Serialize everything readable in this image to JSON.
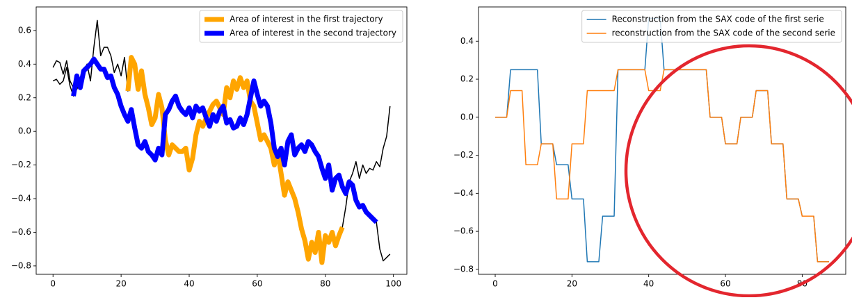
{
  "chart_data": [
    {
      "type": "line",
      "x": [
        0,
        1,
        2,
        3,
        4,
        5,
        6,
        7,
        8,
        9,
        10,
        11,
        12,
        13,
        14,
        15,
        16,
        17,
        18,
        19,
        20,
        21,
        22,
        23,
        24,
        25,
        26,
        27,
        28,
        29,
        30,
        31,
        32,
        33,
        34,
        35,
        36,
        37,
        38,
        39,
        40,
        41,
        42,
        43,
        44,
        45,
        46,
        47,
        48,
        49,
        50,
        51,
        52,
        53,
        54,
        55,
        56,
        57,
        58,
        59,
        60,
        61,
        62,
        63,
        64,
        65,
        66,
        67,
        68,
        69,
        70,
        71,
        72,
        73,
        74,
        75,
        76,
        77,
        78,
        79,
        80,
        81,
        82,
        83,
        84,
        85,
        86,
        87,
        88,
        89,
        90,
        91,
        92,
        93,
        94,
        95,
        96,
        97,
        98,
        99
      ],
      "series": [
        {
          "color": "#000000",
          "linewidth": 1.5,
          "values": [
            0.38,
            0.42,
            0.41,
            0.34,
            0.42,
            0.3,
            0.26,
            0.25,
            0.3,
            0.35,
            0.4,
            0.3,
            0.5,
            0.66,
            0.45,
            0.5,
            0.5,
            0.45,
            0.35,
            0.4,
            0.33,
            0.44,
            0.24,
            0.44,
            0.4,
            0.25,
            0.36,
            0.22,
            0.14,
            0.04,
            0.08,
            0.22,
            0.14,
            -0.05,
            -0.14,
            -0.08,
            -0.1,
            -0.12,
            -0.12,
            -0.1,
            -0.23,
            -0.16,
            -0.02,
            0.06,
            0.03,
            0.08,
            0.12,
            0.16,
            0.18,
            0.14,
            0.1,
            0.26,
            0.2,
            0.3,
            0.25,
            0.32,
            0.26,
            0.3,
            0.18,
            0.15,
            0.05,
            -0.05,
            -0.02,
            -0.06,
            -0.1,
            -0.2,
            -0.12,
            -0.25,
            -0.38,
            -0.3,
            -0.35,
            -0.4,
            -0.48,
            -0.58,
            -0.65,
            -0.76,
            -0.66,
            -0.72,
            -0.6,
            -0.78,
            -0.62,
            -0.66,
            -0.6,
            -0.68,
            -0.62,
            -0.57,
            -0.45,
            -0.3,
            -0.25,
            -0.18,
            -0.28,
            -0.2,
            -0.25,
            -0.22,
            -0.23,
            -0.18,
            -0.21,
            -0.1,
            -0.03,
            0.15
          ]
        },
        {
          "color": "#000000",
          "linewidth": 1.5,
          "values": [
            0.3,
            0.31,
            0.28,
            0.3,
            0.38,
            0.27,
            0.21,
            0.33,
            0.26,
            0.36,
            0.38,
            0.4,
            0.43,
            0.4,
            0.37,
            0.37,
            0.32,
            0.33,
            0.26,
            0.22,
            0.15,
            0.1,
            0.06,
            0.13,
            0.02,
            -0.08,
            -0.1,
            -0.06,
            -0.12,
            -0.14,
            -0.17,
            -0.1,
            -0.14,
            0.1,
            0.13,
            0.18,
            0.21,
            0.15,
            0.12,
            0.1,
            0.14,
            0.08,
            0.15,
            0.12,
            0.14,
            0.08,
            0.03,
            0.1,
            0.06,
            0.12,
            0.15,
            0.05,
            0.07,
            0.02,
            0.03,
            0.08,
            0.04,
            0.1,
            0.2,
            0.3,
            0.22,
            0.15,
            0.18,
            0.15,
            0.05,
            -0.1,
            -0.15,
            -0.1,
            -0.2,
            -0.06,
            -0.02,
            -0.14,
            -0.1,
            -0.08,
            -0.12,
            -0.06,
            -0.08,
            -0.12,
            -0.15,
            -0.22,
            -0.28,
            -0.2,
            -0.35,
            -0.28,
            -0.26,
            -0.33,
            -0.37,
            -0.3,
            -0.32,
            -0.41,
            -0.45,
            -0.44,
            -0.48,
            -0.5,
            -0.52,
            -0.54,
            -0.7,
            -0.77,
            -0.75,
            -0.73
          ]
        },
        {
          "name": "Area of interest in the first trajectory",
          "color": "#ffa500",
          "linewidth": 7,
          "values": [
            null,
            null,
            null,
            null,
            null,
            null,
            null,
            null,
            null,
            null,
            null,
            null,
            null,
            null,
            null,
            null,
            null,
            null,
            null,
            null,
            null,
            null,
            0.24,
            0.44,
            0.4,
            0.25,
            0.36,
            0.22,
            0.14,
            0.04,
            0.08,
            0.22,
            0.14,
            -0.05,
            -0.14,
            -0.08,
            -0.1,
            -0.12,
            -0.12,
            -0.1,
            -0.23,
            -0.16,
            -0.02,
            0.06,
            0.03,
            0.08,
            0.12,
            0.16,
            0.18,
            0.14,
            0.1,
            0.26,
            0.2,
            0.3,
            0.25,
            0.32,
            0.26,
            0.3,
            0.18,
            0.15,
            0.05,
            -0.05,
            -0.02,
            -0.06,
            -0.1,
            -0.2,
            -0.12,
            -0.25,
            -0.38,
            -0.3,
            -0.35,
            -0.4,
            -0.48,
            -0.58,
            -0.65,
            -0.76,
            -0.66,
            -0.72,
            -0.6,
            -0.78,
            -0.62,
            -0.66,
            -0.6,
            -0.68,
            -0.62,
            -0.57,
            null,
            null,
            null,
            null,
            null,
            null,
            null,
            null,
            null,
            null,
            null,
            null,
            null,
            null
          ]
        },
        {
          "name": "Area of interest in the second trajectory",
          "color": "#0000ff",
          "linewidth": 7,
          "values": [
            null,
            null,
            null,
            null,
            null,
            null,
            0.21,
            0.33,
            0.26,
            0.36,
            0.38,
            0.4,
            0.43,
            0.4,
            0.37,
            0.37,
            0.32,
            0.33,
            0.26,
            0.22,
            0.15,
            0.1,
            0.06,
            0.13,
            0.02,
            -0.08,
            -0.1,
            -0.06,
            -0.12,
            -0.14,
            -0.17,
            -0.1,
            -0.14,
            0.1,
            0.13,
            0.18,
            0.21,
            0.15,
            0.12,
            0.1,
            0.14,
            0.08,
            0.15,
            0.12,
            0.14,
            0.08,
            0.03,
            0.1,
            0.06,
            0.12,
            0.15,
            0.05,
            0.07,
            0.02,
            0.03,
            0.08,
            0.04,
            0.1,
            0.2,
            0.3,
            0.22,
            0.15,
            0.18,
            0.15,
            0.05,
            -0.1,
            -0.15,
            -0.1,
            -0.2,
            -0.06,
            -0.02,
            -0.14,
            -0.1,
            -0.08,
            -0.12,
            -0.06,
            -0.08,
            -0.12,
            -0.15,
            -0.22,
            -0.28,
            -0.2,
            -0.35,
            -0.28,
            -0.26,
            -0.33,
            -0.37,
            -0.3,
            -0.32,
            -0.41,
            -0.45,
            -0.44,
            -0.48,
            -0.5,
            -0.52,
            -0.54,
            null,
            null,
            null,
            null
          ]
        }
      ],
      "xlim": [
        -4.95,
        103.95
      ],
      "ylim": [
        -0.85,
        0.74
      ],
      "xticks": [
        0,
        20,
        40,
        60,
        80,
        100
      ],
      "yticks": [
        {
          "value": -0.8,
          "label": "−0.8"
        },
        {
          "value": -0.6,
          "label": "−0.6"
        },
        {
          "value": -0.4,
          "label": "−0.4"
        },
        {
          "value": -0.2,
          "label": "−0.2"
        },
        {
          "value": 0,
          "label": "0.0"
        },
        0.2,
        0.4,
        0.6
      ],
      "legend": "upper right"
    },
    {
      "type": "line",
      "x": [
        0,
        1,
        2,
        3,
        4,
        5,
        6,
        7,
        8,
        9,
        10,
        11,
        12,
        13,
        14,
        15,
        16,
        17,
        18,
        19,
        20,
        21,
        22,
        23,
        24,
        25,
        26,
        27,
        28,
        29,
        30,
        31,
        32,
        33,
        34,
        35,
        36,
        37,
        38,
        39,
        40,
        41,
        42,
        43,
        44,
        45,
        46,
        47,
        48,
        49,
        50,
        51,
        52,
        53,
        54,
        55,
        56,
        57,
        58,
        59,
        60,
        61,
        62,
        63,
        64,
        65,
        66,
        67,
        68,
        69,
        70,
        71,
        72,
        73,
        74,
        75,
        76,
        77,
        78,
        79,
        80,
        81,
        82,
        83,
        84,
        85,
        86,
        87
      ],
      "series": [
        {
          "name": "Reconstruction from the SAX code of the first serie",
          "color": "#1f77b4",
          "linewidth": 1.5,
          "values": [
            0,
            0,
            0,
            0,
            0.25,
            0.25,
            0.25,
            0.25,
            0.25,
            0.25,
            0.25,
            0.25,
            -0.14,
            -0.14,
            -0.14,
            -0.14,
            -0.25,
            -0.25,
            -0.25,
            -0.25,
            -0.43,
            -0.43,
            -0.43,
            -0.43,
            -0.76,
            -0.76,
            -0.76,
            -0.76,
            -0.52,
            -0.52,
            -0.52,
            -0.52,
            0.25,
            0.25,
            0.25,
            0.25,
            0.25,
            0.25,
            0.25,
            0.25,
            0.52,
            0.52,
            0.52,
            0.52,
            0.25,
            0.25,
            0.25,
            0.25,
            0.25,
            0.25,
            0.25,
            0.25,
            0.25,
            0.25,
            0.25,
            0.25,
            0,
            0,
            0,
            0,
            -0.14,
            -0.14,
            -0.14,
            -0.14,
            0,
            0,
            0,
            0,
            0.14,
            0.14,
            0.14,
            0.14,
            -0.14,
            -0.14,
            -0.14,
            -0.14,
            -0.43,
            -0.43,
            -0.43,
            -0.43,
            -0.52,
            -0.52,
            -0.52,
            -0.52,
            -0.76,
            -0.76,
            -0.76,
            -0.76
          ]
        },
        {
          "name": "reconstruction from the SAX code of the second serie",
          "color": "#ff7f0e",
          "linewidth": 1.5,
          "values": [
            0,
            0,
            0,
            0,
            0.14,
            0.14,
            0.14,
            0.14,
            -0.25,
            -0.25,
            -0.25,
            -0.25,
            -0.14,
            -0.14,
            -0.14,
            -0.14,
            -0.43,
            -0.43,
            -0.43,
            -0.43,
            -0.14,
            -0.14,
            -0.14,
            -0.14,
            0.14,
            0.14,
            0.14,
            0.14,
            0.14,
            0.14,
            0.14,
            0.14,
            0.25,
            0.25,
            0.25,
            0.25,
            0.25,
            0.25,
            0.25,
            0.25,
            0.14,
            0.14,
            0.14,
            0.14,
            0.25,
            0.25,
            0.25,
            0.25,
            0.25,
            0.25,
            0.25,
            0.25,
            0.25,
            0.25,
            0.25,
            0.25,
            0,
            0,
            0,
            0,
            -0.14,
            -0.14,
            -0.14,
            -0.14,
            0,
            0,
            0,
            0,
            0.14,
            0.14,
            0.14,
            0.14,
            -0.14,
            -0.14,
            -0.14,
            -0.14,
            -0.43,
            -0.43,
            -0.43,
            -0.43,
            -0.52,
            -0.52,
            -0.52,
            -0.52,
            -0.76,
            -0.76,
            -0.76,
            -0.76
          ]
        }
      ],
      "xlim": [
        -4.35,
        91.35
      ],
      "ylim": [
        -0.826,
        0.58
      ],
      "xticks": [
        0,
        20,
        40,
        60,
        80
      ],
      "yticks": [
        {
          "value": -0.8,
          "label": "−0.8"
        },
        {
          "value": -0.6,
          "label": "−0.6"
        },
        {
          "value": -0.4,
          "label": "−0.4"
        },
        {
          "value": -0.2,
          "label": "−0.2"
        },
        {
          "value": 0,
          "label": "0.0"
        },
        0.2,
        0.4
      ],
      "legend": "upper right"
    }
  ]
}
